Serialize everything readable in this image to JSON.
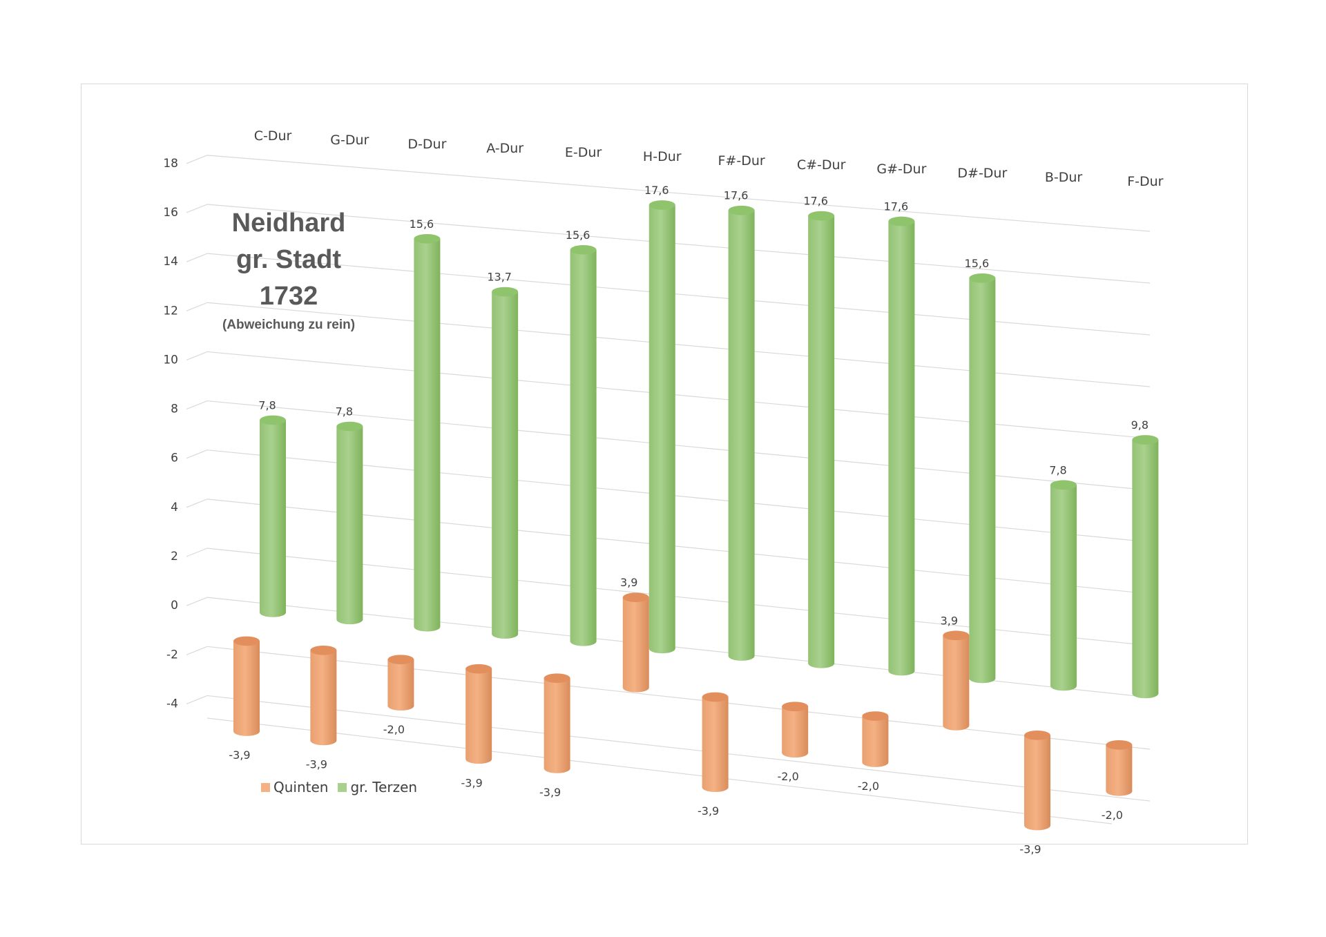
{
  "chart_data": {
    "type": "bar",
    "subtype": "3d-cylinder-column",
    "title_lines": [
      "Neidhard",
      "gr. Stadt",
      "1732"
    ],
    "subtitle": "(Abweichung zu rein)",
    "categories": [
      "C-Dur",
      "G-Dur",
      "D-Dur",
      "A-Dur",
      "E-Dur",
      "H-Dur",
      "F#-Dur",
      "C#-Dur",
      "G#-Dur",
      "D#-Dur",
      "B-Dur",
      "F-Dur"
    ],
    "series": [
      {
        "name": "Quinten",
        "color": "#f4b183",
        "values": [
          -3.9,
          -3.9,
          -2.0,
          -3.9,
          -3.9,
          3.9,
          -3.9,
          -2.0,
          -2.0,
          3.9,
          -3.9,
          -2.0
        ],
        "labels": [
          "-3,9",
          "-3,9",
          "-2,0",
          "-3,9",
          "-3,9",
          "3,9",
          "-3,9",
          "-2,0",
          "-2,0",
          "3,9",
          "-3,9",
          "-2,0"
        ]
      },
      {
        "name": "gr. Terzen",
        "color": "#a9d18e",
        "values": [
          7.8,
          7.8,
          15.6,
          13.7,
          15.6,
          17.6,
          17.6,
          17.6,
          17.6,
          15.6,
          7.8,
          9.8
        ],
        "labels": [
          "7,8",
          "7,8",
          "15,6",
          "13,7",
          "15,6",
          "17,6",
          "17,6",
          "17,6",
          "17,6",
          "15,6",
          "7,8",
          "9,8"
        ]
      }
    ],
    "y_ticks": [
      "18",
      "16",
      "14",
      "12",
      "10",
      "8",
      "6",
      "4",
      "2",
      "0",
      "-2",
      "-4"
    ],
    "ylim": [
      -4,
      18
    ],
    "grid": true,
    "legend_position": "bottom-left",
    "colors": {
      "quinten": "#f4b183",
      "terzen": "#a9d18e",
      "grid": "#d9d9d9",
      "text": "#404040",
      "title": "#595959"
    }
  }
}
